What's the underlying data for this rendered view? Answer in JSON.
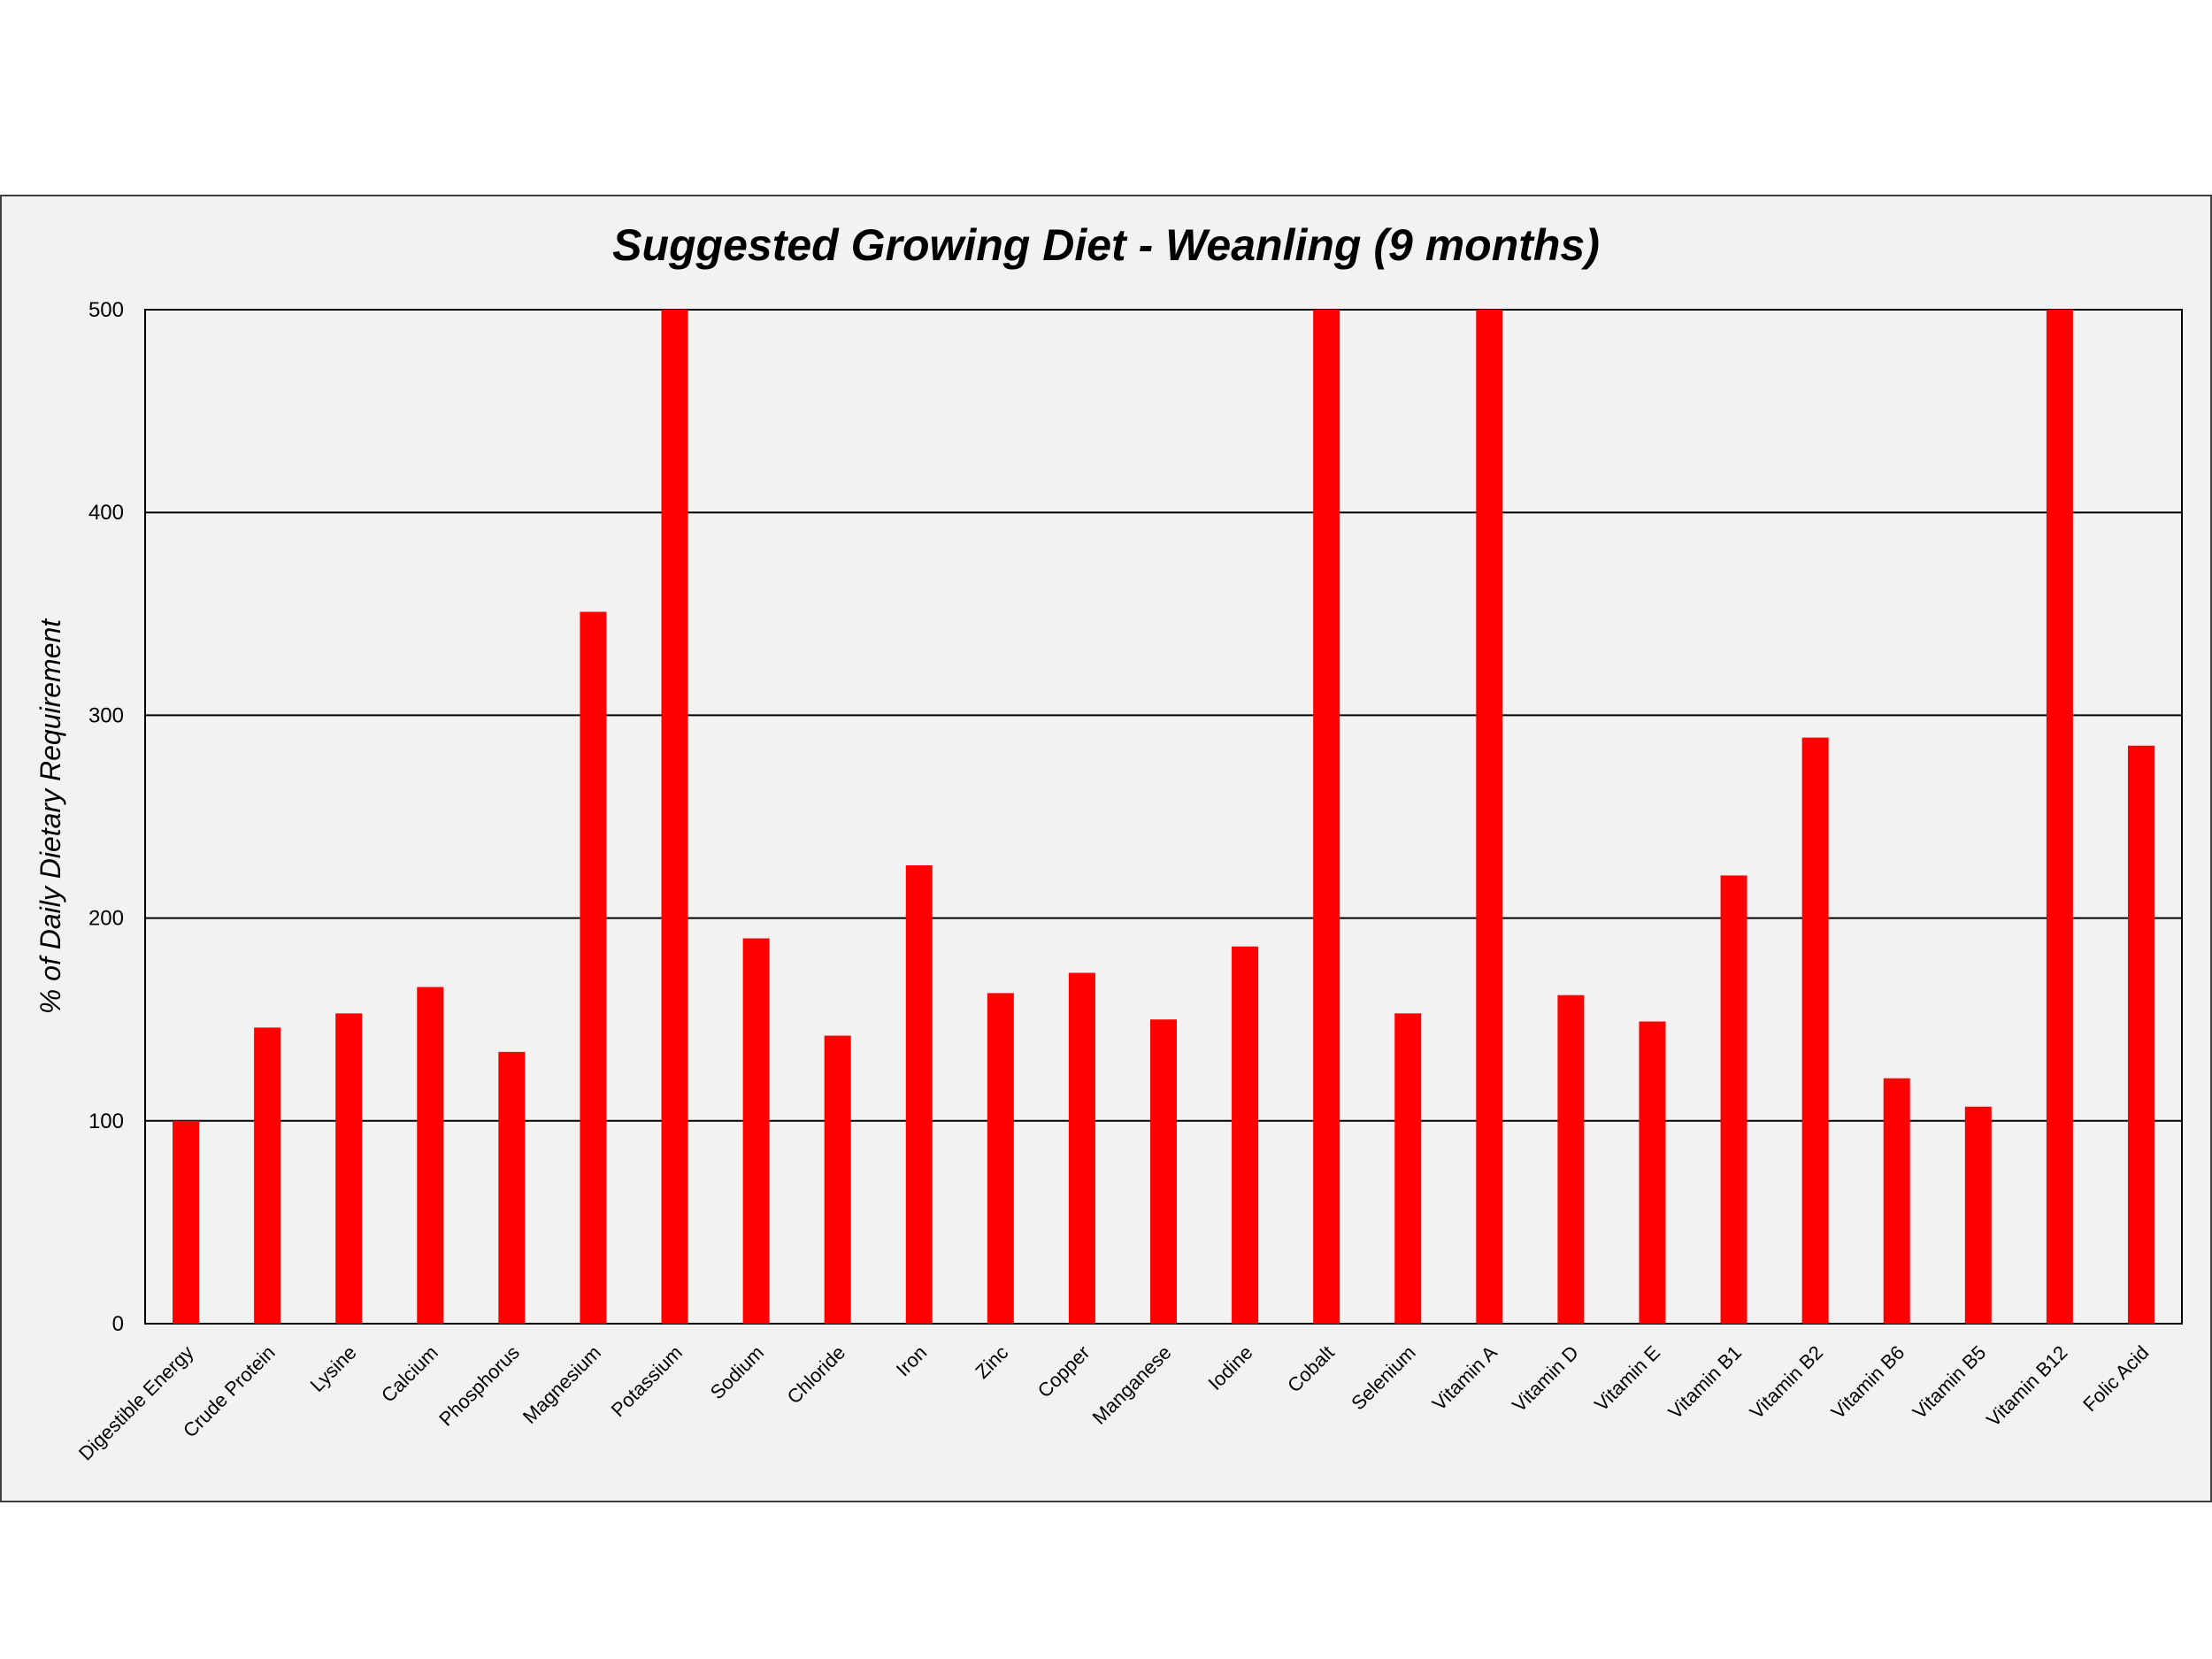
{
  "chart_data": {
    "type": "bar",
    "title": "Suggested Growing Diet - Weanling (9 months)",
    "xlabel": "",
    "ylabel": "% of Daily Dietary Requirement",
    "ylim": [
      0,
      500
    ],
    "yticks": [
      0,
      100,
      200,
      300,
      400,
      500
    ],
    "grid": true,
    "bar_color": "#ff0000",
    "categories": [
      "Digestible Energy",
      "Crude Protein",
      "Lysine",
      "Calcium",
      "Phosphorus",
      "Magnesium",
      "Potassium",
      "Sodium",
      "Chloride",
      "Iron",
      "Zinc",
      "Copper",
      "Manganese",
      "Iodine",
      "Cobalt",
      "Selenium",
      "Vitamin A",
      "Vitamin D",
      "Vitamin E",
      "Vitamin B1",
      "Vitamin B2",
      "Vitamin B6",
      "Vitamin B5",
      "Vitamin B12",
      "Folic Acid"
    ],
    "values": [
      100,
      146,
      153,
      166,
      134,
      351,
      500,
      190,
      142,
      226,
      163,
      173,
      150,
      186,
      500,
      153,
      500,
      162,
      149,
      221,
      289,
      121,
      107,
      500,
      285
    ]
  }
}
